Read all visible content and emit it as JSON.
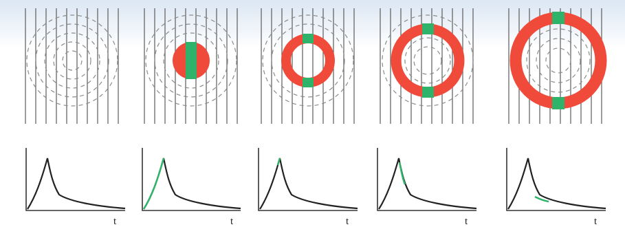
{
  "colors": {
    "wave_line": "#666666",
    "dash_ring": "#8a8a8a",
    "ring": "#ef4a3a",
    "ring_band": "#2fb36b",
    "curve": "#222222",
    "curve_highlight": "#2fb36b",
    "axis": "#333333"
  },
  "time_axis_label": "t",
  "panels": [
    {
      "stage": "no-ring"
    },
    {
      "stage": "filled-disc"
    },
    {
      "stage": "small-ring"
    },
    {
      "stage": "medium-ring"
    },
    {
      "stage": "large-ring"
    }
  ]
}
